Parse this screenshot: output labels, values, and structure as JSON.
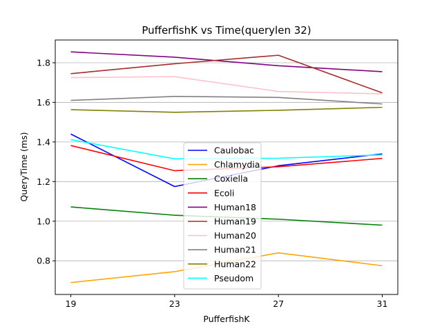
{
  "chart_data": {
    "type": "line",
    "title": "PufferfishK vs Time(querylen 32)",
    "xlabel": "PufferfishK",
    "ylabel": "QueryTime (ms)",
    "x": [
      19,
      23,
      27,
      31
    ],
    "x_ticks": [
      "19",
      "23",
      "27",
      "31"
    ],
    "y_ticks": [
      "0.8",
      "1.0",
      "1.2",
      "1.4",
      "1.6",
      "1.8"
    ],
    "xlim": [
      18.4,
      31.6
    ],
    "ylim": [
      0.63,
      1.915
    ],
    "grid": "horizontal",
    "legend_position": "center",
    "series": [
      {
        "name": "Caulobac",
        "color": "#0000ff",
        "values": [
          1.44,
          1.175,
          1.28,
          1.34
        ]
      },
      {
        "name": "Chlamydia",
        "color": "#ffa500",
        "values": [
          0.69,
          0.745,
          0.84,
          0.775
        ]
      },
      {
        "name": "Coxiella",
        "color": "#008000",
        "values": [
          1.072,
          1.03,
          1.01,
          0.98
        ]
      },
      {
        "name": "Ecoli",
        "color": "#ff0000",
        "values": [
          1.382,
          1.255,
          1.275,
          1.317
        ]
      },
      {
        "name": "Human18",
        "color": "#800080",
        "values": [
          1.855,
          1.828,
          1.785,
          1.755
        ]
      },
      {
        "name": "Human19",
        "color": "#a52a2a",
        "values": [
          1.745,
          1.795,
          1.838,
          1.648
        ]
      },
      {
        "name": "Human20",
        "color": "#ffc0cb",
        "values": [
          1.725,
          1.73,
          1.655,
          1.643
        ]
      },
      {
        "name": "Human21",
        "color": "#808080",
        "values": [
          1.61,
          1.63,
          1.625,
          1.592
        ]
      },
      {
        "name": "Human22",
        "color": "#808000",
        "values": [
          1.563,
          1.55,
          1.56,
          1.575
        ]
      },
      {
        "name": "Pseudom",
        "color": "#00ffff",
        "values": [
          1.412,
          1.315,
          1.318,
          1.335
        ]
      }
    ]
  }
}
